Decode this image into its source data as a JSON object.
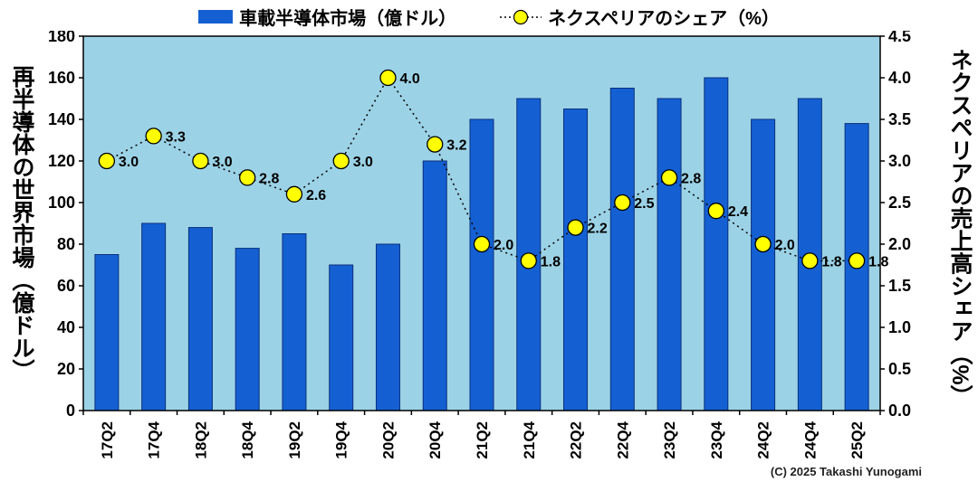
{
  "legend": {
    "bar_label": "車載半導体市場（億ドル）",
    "line_label": "ネクスペリアのシェア（%）"
  },
  "left_axis_title": "再半導体の世界市場（億ドル）",
  "right_axis_title": "ネクスペリアの売上高シェア（%）",
  "copyright": "(C) 2025 Takashi Yunogami",
  "colors": {
    "bar": "#1460d2",
    "bar_border": "#0a2f7c",
    "marker": "#ffff00",
    "marker_border": "#000000",
    "line": "#000000",
    "plot_bg": "#9cd2e6",
    "background": "#ffffff",
    "text": "#000000"
  },
  "chart_data": {
    "type": "bar",
    "subtype": "combo-bar-line",
    "title": "",
    "categories": [
      "17Q2",
      "17Q4",
      "18Q2",
      "18Q4",
      "19Q2",
      "19Q4",
      "20Q2",
      "20Q4",
      "21Q2",
      "21Q4",
      "22Q2",
      "22Q4",
      "23Q2",
      "23Q4",
      "24Q2",
      "24Q4",
      "25Q2"
    ],
    "series": [
      {
        "name": "車載半導体市場（億ドル）",
        "type": "bar",
        "axis": "left",
        "values": [
          75,
          90,
          88,
          78,
          85,
          70,
          80,
          120,
          140,
          150,
          145,
          155,
          150,
          160,
          140,
          150,
          138
        ]
      },
      {
        "name": "ネクスペリアのシェア（%）",
        "type": "line",
        "axis": "right",
        "values": [
          3.0,
          3.3,
          3.0,
          2.8,
          2.6,
          3.0,
          4.0,
          3.2,
          2.0,
          1.8,
          2.2,
          2.5,
          2.8,
          2.4,
          2.0,
          1.8,
          1.8
        ],
        "point_labels": [
          "3.0",
          "3.3",
          "3.0",
          "2.8",
          "2.6",
          "3.0",
          "4.0",
          "3.2",
          "2.0",
          "1.8",
          "2.2",
          "2.5",
          "2.8",
          "2.4",
          "2.0",
          "1.8",
          "1.8"
        ]
      }
    ],
    "left_axis": {
      "min": 0,
      "max": 180,
      "step": 20,
      "ylabel": "再半導体の世界市場（億ドル）"
    },
    "right_axis": {
      "min": 0,
      "max": 4.5,
      "step": 0.5,
      "ylabel": "ネクスペリアの売上高シェア（%）"
    },
    "grid": false,
    "legend_position": "top"
  }
}
